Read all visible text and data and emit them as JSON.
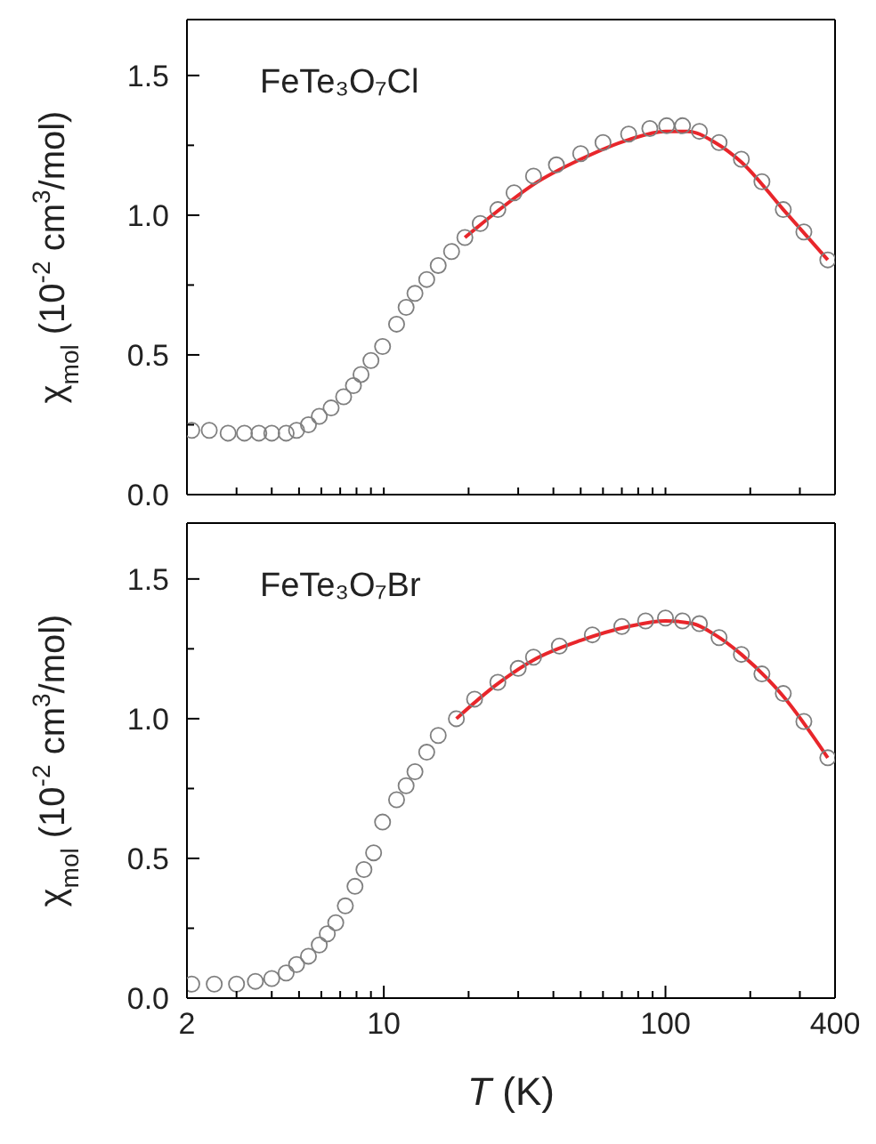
{
  "chart_data": [
    {
      "type": "scatter",
      "annotations": [
        "FeTe₃O₇Cl"
      ],
      "ylabel": "χ$_{mol}$ (10$^{-2}$ cm$^{3}$/mol)",
      "xlim": [
        2,
        400
      ],
      "log": "x",
      "ylim": [
        0,
        1.7
      ],
      "tick_labels": "y",
      "xticks": [
        {
          "value": 2,
          "label": null
        },
        {
          "value": 3,
          "label": null
        },
        {
          "value": 4,
          "label": null
        },
        {
          "value": 5,
          "label": null
        },
        {
          "value": 6,
          "label": null
        },
        {
          "value": 7,
          "label": null
        },
        {
          "value": 8,
          "label": null
        },
        {
          "value": 9,
          "label": null
        },
        {
          "value": 10,
          "label": null
        },
        {
          "value": 20,
          "label": null
        },
        {
          "value": 30,
          "label": null
        },
        {
          "value": 40,
          "label": null
        },
        {
          "value": 50,
          "label": null
        },
        {
          "value": 60,
          "label": null
        },
        {
          "value": 70,
          "label": null
        },
        {
          "value": 80,
          "label": null
        },
        {
          "value": 90,
          "label": null
        },
        {
          "value": 100,
          "label": null
        },
        {
          "value": 200,
          "label": null
        },
        {
          "value": 300,
          "label": null
        },
        {
          "value": 400,
          "label": null
        }
      ],
      "yticks": [
        {
          "value": 0,
          "label": "0.0"
        },
        {
          "value": 0.25,
          "label": null
        },
        {
          "value": 0.5,
          "label": "0.5"
        },
        {
          "value": 0.75,
          "label": null
        },
        {
          "value": 1,
          "label": "1.0"
        },
        {
          "value": 1.25,
          "label": null
        },
        {
          "value": 1.5,
          "label": "1.5"
        }
      ],
      "series": [
        {
          "type": "scatter",
          "marker": "circle",
          "color": "#7f7f7f",
          "x": [
            2.08,
            2.4,
            2.8,
            3.2,
            3.6,
            4.0,
            4.5,
            4.9,
            5.4,
            5.9,
            6.5,
            7.2,
            7.8,
            8.3,
            9.0,
            9.9,
            11.1,
            12.0,
            12.9,
            14.2,
            15.6,
            17.4,
            19.4,
            22,
            25.4,
            29,
            34,
            41,
            50,
            60,
            74,
            88,
            101,
            115,
            132,
            155,
            186,
            220,
            262,
            310,
            377
          ],
          "values": [
            0.23,
            0.23,
            0.22,
            0.22,
            0.22,
            0.22,
            0.22,
            0.23,
            0.25,
            0.28,
            0.31,
            0.35,
            0.39,
            0.43,
            0.48,
            0.53,
            0.61,
            0.67,
            0.72,
            0.77,
            0.82,
            0.87,
            0.92,
            0.97,
            1.02,
            1.08,
            1.14,
            1.18,
            1.22,
            1.26,
            1.29,
            1.31,
            1.32,
            1.32,
            1.3,
            1.26,
            1.2,
            1.12,
            1.02,
            0.94,
            0.84
          ]
        },
        {
          "type": "line",
          "color": "#e8262b",
          "x": [
            19.4,
            25,
            34,
            50,
            74,
            100,
            120,
            150,
            186,
            262,
            377
          ],
          "values": [
            0.92,
            1.01,
            1.11,
            1.2,
            1.27,
            1.3,
            1.3,
            1.26,
            1.19,
            1.02,
            0.84
          ]
        }
      ]
    },
    {
      "type": "scatter",
      "annotations": [
        "FeTe₃O₇Br"
      ],
      "ylabel": "χ$_{mol}$ (10$^{-2}$ cm$^{3}$/mol)",
      "xlabel": "T (K)",
      "xlim": [
        2,
        400
      ],
      "log": "x",
      "ylim": [
        0,
        1.7
      ],
      "xticks": [
        2,
        {
          "value": 3,
          "label": null
        },
        {
          "value": 4,
          "label": null
        },
        {
          "value": 5,
          "label": null
        },
        {
          "value": 6,
          "label": null
        },
        {
          "value": 7,
          "label": null
        },
        {
          "value": 8,
          "label": null
        },
        {
          "value": 9,
          "label": null
        },
        10,
        {
          "value": 20,
          "label": null
        },
        {
          "value": 30,
          "label": null
        },
        {
          "value": 40,
          "label": null
        },
        {
          "value": 50,
          "label": null
        },
        {
          "value": 60,
          "label": null
        },
        {
          "value": 70,
          "label": null
        },
        {
          "value": 80,
          "label": null
        },
        {
          "value": 90,
          "label": null
        },
        100,
        {
          "value": 200,
          "label": null
        },
        {
          "value": 300,
          "label": null
        },
        400
      ],
      "yticks": [
        {
          "value": 0,
          "label": "0.0"
        },
        {
          "value": 0.25,
          "label": null
        },
        {
          "value": 0.5,
          "label": "0.5"
        },
        {
          "value": 0.75,
          "label": null
        },
        {
          "value": 1,
          "label": "1.0"
        },
        {
          "value": 1.25,
          "label": null
        },
        {
          "value": 1.5,
          "label": "1.5"
        }
      ],
      "series": [
        {
          "type": "scatter",
          "marker": "circle",
          "color": "#7f7f7f",
          "x": [
            2.08,
            2.5,
            3.0,
            3.5,
            4.0,
            4.5,
            4.9,
            5.4,
            5.9,
            6.3,
            6.75,
            7.3,
            7.9,
            8.5,
            9.2,
            9.9,
            11.1,
            12.0,
            12.9,
            14.2,
            15.6,
            18.1,
            21,
            25.4,
            30,
            34,
            42,
            55,
            70,
            85,
            100,
            115,
            132,
            155,
            186,
            220,
            262,
            310,
            377
          ],
          "values": [
            0.05,
            0.05,
            0.05,
            0.06,
            0.07,
            0.09,
            0.12,
            0.15,
            0.19,
            0.23,
            0.27,
            0.33,
            0.4,
            0.46,
            0.52,
            0.63,
            0.71,
            0.76,
            0.81,
            0.88,
            0.94,
            1.0,
            1.07,
            1.13,
            1.18,
            1.22,
            1.26,
            1.3,
            1.33,
            1.35,
            1.36,
            1.35,
            1.34,
            1.29,
            1.23,
            1.16,
            1.09,
            0.99,
            0.86
          ]
        },
        {
          "type": "line",
          "color": "#e8262b",
          "x": [
            18.1,
            25,
            34,
            50,
            74,
            100,
            125,
            150,
            186,
            262,
            377
          ],
          "values": [
            1.0,
            1.12,
            1.21,
            1.28,
            1.33,
            1.35,
            1.34,
            1.3,
            1.23,
            1.08,
            0.86
          ]
        }
      ]
    }
  ]
}
